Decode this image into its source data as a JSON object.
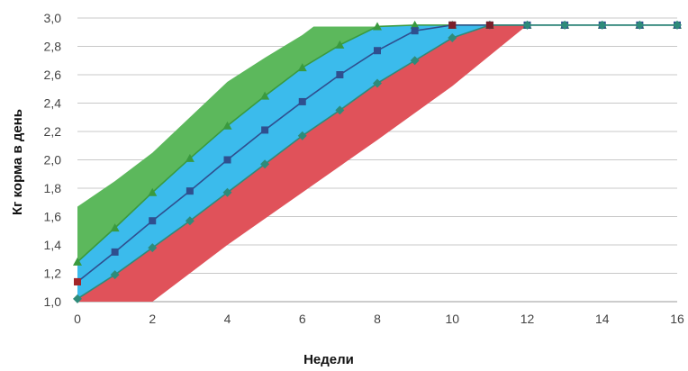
{
  "chart_data": {
    "type": "area",
    "title": "",
    "xlabel": "Недели",
    "ylabel": "Кг корма в день",
    "xlim": [
      0,
      16
    ],
    "ylim": [
      1.0,
      3.0
    ],
    "xticks": [
      0,
      2,
      4,
      6,
      8,
      10,
      12,
      14,
      16
    ],
    "yticks": [
      "1,0",
      "1,2",
      "1,4",
      "1,6",
      "1,8",
      "2,0",
      "2,2",
      "2,4",
      "2,6",
      "2,8",
      "3,0"
    ],
    "grid": true,
    "legend": "none",
    "bands": [
      {
        "color": "#5cb85c",
        "upper": [
          [
            0,
            1.67
          ],
          [
            1,
            1.85
          ],
          [
            2,
            2.05
          ],
          [
            3,
            2.3
          ],
          [
            4,
            2.55
          ],
          [
            5,
            2.72
          ],
          [
            6,
            2.88
          ],
          [
            6.3,
            2.94
          ],
          [
            8,
            2.94
          ]
        ],
        "lower": [
          [
            0,
            1.28
          ],
          [
            1,
            1.52
          ],
          [
            2,
            1.77
          ],
          [
            3,
            2.01
          ],
          [
            4,
            2.24
          ],
          [
            5,
            2.45
          ],
          [
            6,
            2.65
          ],
          [
            7,
            2.81
          ],
          [
            8,
            2.94
          ]
        ]
      },
      {
        "color": "#3bbbec",
        "upper": [
          [
            0,
            1.28
          ],
          [
            1,
            1.52
          ],
          [
            2,
            1.77
          ],
          [
            3,
            2.01
          ],
          [
            4,
            2.24
          ],
          [
            5,
            2.45
          ],
          [
            6,
            2.65
          ],
          [
            7,
            2.81
          ],
          [
            8,
            2.94
          ],
          [
            9,
            2.95
          ],
          [
            10,
            2.95
          ],
          [
            11,
            2.95
          ],
          [
            12,
            2.95
          ]
        ],
        "lower": [
          [
            0,
            1.02
          ],
          [
            1,
            1.19
          ],
          [
            2,
            1.38
          ],
          [
            3,
            1.57
          ],
          [
            4,
            1.77
          ],
          [
            5,
            1.97
          ],
          [
            6,
            2.17
          ],
          [
            7,
            2.35
          ],
          [
            8,
            2.54
          ],
          [
            9,
            2.7
          ],
          [
            10,
            2.86
          ],
          [
            11,
            2.95
          ],
          [
            12,
            2.95
          ]
        ]
      },
      {
        "color": "#e0525a",
        "upper": [
          [
            0,
            1.02
          ],
          [
            1,
            1.19
          ],
          [
            2,
            1.38
          ],
          [
            3,
            1.57
          ],
          [
            4,
            1.77
          ],
          [
            5,
            1.97
          ],
          [
            6,
            2.17
          ],
          [
            7,
            2.35
          ],
          [
            8,
            2.54
          ],
          [
            9,
            2.7
          ],
          [
            10,
            2.86
          ],
          [
            11,
            2.95
          ],
          [
            12,
            2.95
          ]
        ],
        "lower": [
          [
            0,
            1.0
          ],
          [
            1,
            1.0
          ],
          [
            2,
            1.0
          ],
          [
            4,
            1.4
          ],
          [
            6,
            1.77
          ],
          [
            8,
            2.14
          ],
          [
            10,
            2.52
          ],
          [
            12,
            2.95
          ]
        ]
      }
    ],
    "series": [
      {
        "marker": "triangle",
        "color": "#3a9a3e",
        "x": [
          0,
          1,
          2,
          3,
          4,
          5,
          6,
          7,
          8,
          9,
          10,
          11,
          12,
          13,
          14,
          15,
          16
        ],
        "values": [
          1.28,
          1.52,
          1.77,
          2.01,
          2.24,
          2.45,
          2.65,
          2.81,
          2.94,
          2.95,
          2.95,
          2.95,
          2.95,
          2.95,
          2.95,
          2.95,
          2.95
        ]
      },
      {
        "marker": "square",
        "color": "#2f4f8f",
        "x": [
          0,
          1,
          2,
          3,
          4,
          5,
          6,
          7,
          8,
          9,
          10,
          11,
          12,
          13,
          14,
          15,
          16
        ],
        "values": [
          1.14,
          1.35,
          1.57,
          1.78,
          2.0,
          2.21,
          2.41,
          2.6,
          2.77,
          2.91,
          2.95,
          2.95,
          2.95,
          2.95,
          2.95,
          2.95,
          2.95
        ]
      },
      {
        "marker": "diamond",
        "color": "#2e8b7a",
        "x": [
          0,
          1,
          2,
          3,
          4,
          5,
          6,
          7,
          8,
          9,
          10,
          11,
          12,
          13,
          14,
          15,
          16
        ],
        "values": [
          1.02,
          1.19,
          1.38,
          1.57,
          1.77,
          1.97,
          2.17,
          2.35,
          2.54,
          2.7,
          2.86,
          2.95,
          2.95,
          2.95,
          2.95,
          2.95,
          2.95
        ]
      }
    ],
    "extra_markers": [
      {
        "x": 0,
        "y": 1.14,
        "marker": "square",
        "color": "#a3262a"
      },
      {
        "x": 10,
        "y": 2.95,
        "marker": "square",
        "color": "#7a1f2a"
      },
      {
        "x": 11,
        "y": 2.95,
        "marker": "square",
        "color": "#7a1f2a"
      }
    ]
  }
}
